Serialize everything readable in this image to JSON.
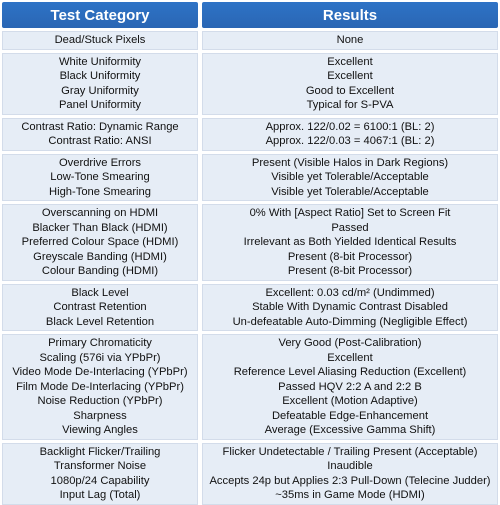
{
  "header": {
    "category_label": "Test Category",
    "results_label": "Results"
  },
  "groups": [
    {
      "rows": [
        {
          "category": "Dead/Stuck Pixels",
          "result": "None"
        }
      ]
    },
    {
      "rows": [
        {
          "category": "White Uniformity",
          "result": "Excellent"
        },
        {
          "category": "Black Uniformity",
          "result": "Excellent"
        },
        {
          "category": "Gray Uniformity",
          "result": "Good to Excellent"
        },
        {
          "category": "Panel Uniformity",
          "result": "Typical for S-PVA"
        }
      ]
    },
    {
      "rows": [
        {
          "category": "Contrast Ratio: Dynamic Range",
          "result": "Approx. 122/0.02 = 6100:1 (BL: 2)"
        },
        {
          "category": "Contrast Ratio: ANSI",
          "result": "Approx. 122/0.03 = 4067:1 (BL: 2)"
        }
      ]
    },
    {
      "rows": [
        {
          "category": "Overdrive Errors",
          "result": "Present (Visible Halos in Dark Regions)"
        },
        {
          "category": "Low-Tone Smearing",
          "result": "Visible yet Tolerable/Acceptable"
        },
        {
          "category": "High-Tone Smearing",
          "result": "Visible yet Tolerable/Acceptable"
        }
      ]
    },
    {
      "rows": [
        {
          "category": "Overscanning on HDMI",
          "result": "0% With [Aspect Ratio] Set to Screen Fit"
        },
        {
          "category": "Blacker Than Black (HDMI)",
          "result": "Passed"
        },
        {
          "category": "Preferred Colour Space (HDMI)",
          "result": "Irrelevant as Both Yielded Identical Results"
        },
        {
          "category": "Greyscale Banding (HDMI)",
          "result": "Present (8-bit Processor)"
        },
        {
          "category": "Colour Banding (HDMI)",
          "result": "Present (8-bit Processor)"
        }
      ]
    },
    {
      "rows": [
        {
          "category": "Black Level",
          "result": "Excellent: 0.03 cd/m² (Undimmed)"
        },
        {
          "category": "Contrast Retention",
          "result": "Stable With Dynamic Contrast Disabled"
        },
        {
          "category": "Black Level Retention",
          "result": "Un-defeatable Auto-Dimming (Negligible Effect)"
        }
      ]
    },
    {
      "rows": [
        {
          "category": "Primary Chromaticity",
          "result": "Very Good (Post-Calibration)"
        },
        {
          "category": "Scaling (576i via YPbPr)",
          "result": "Excellent"
        },
        {
          "category": "Video Mode De-Interlacing (YPbPr)",
          "result": "Reference Level Aliasing Reduction (Excellent)"
        },
        {
          "category": "Film Mode De-Interlacing (YPbPr)",
          "result": "Passed HQV 2:2 A and 2:2 B"
        },
        {
          "category": "Noise Reduction (YPbPr)",
          "result": "Excellent (Motion Adaptive)"
        },
        {
          "category": "Sharpness",
          "result": "Defeatable Edge-Enhancement"
        },
        {
          "category": "Viewing Angles",
          "result": "Average (Excessive Gamma Shift)"
        }
      ]
    },
    {
      "rows": [
        {
          "category": "Backlight Flicker/Trailing",
          "result": "Flicker Undetectable / Trailing Present (Acceptable)"
        },
        {
          "category": "Transformer Noise",
          "result": "Inaudible"
        },
        {
          "category": "1080p/24 Capability",
          "result": "Accepts 24p but Applies 2:3 Pull-Down (Telecine Judder)"
        },
        {
          "category": "Input Lag (Total)",
          "result": "~35ms in Game Mode (HDMI)"
        }
      ]
    }
  ]
}
